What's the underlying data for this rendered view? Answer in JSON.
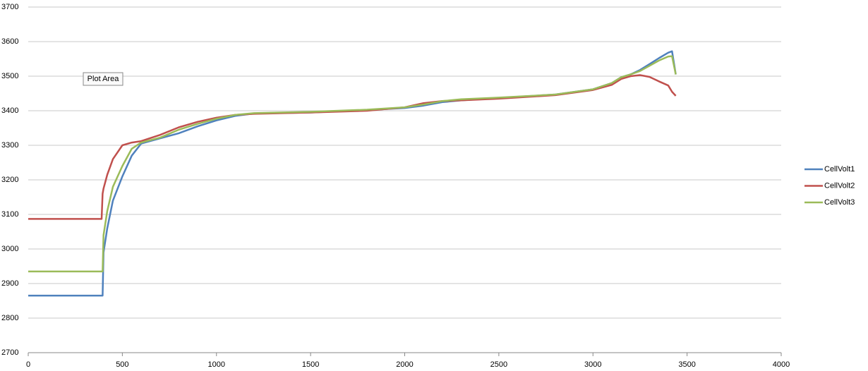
{
  "chart_data": {
    "type": "line",
    "x": [
      0,
      100,
      200,
      300,
      390,
      395,
      400,
      420,
      450,
      500,
      550,
      600,
      700,
      800,
      900,
      1000,
      1100,
      1200,
      1500,
      1800,
      2000,
      2100,
      2200,
      2300,
      2500,
      2800,
      3000,
      3100,
      3150,
      3200,
      3250,
      3300,
      3350,
      3400,
      3420,
      3440
    ],
    "series": [
      {
        "name": "CellVolt1",
        "color": "#4f81bd",
        "values": [
          2865,
          2865,
          2865,
          2865,
          2865,
          2865,
          2990,
          3060,
          3140,
          3210,
          3270,
          3305,
          3320,
          3335,
          3355,
          3372,
          3385,
          3392,
          3395,
          3402,
          3408,
          3415,
          3425,
          3430,
          3437,
          3447,
          3462,
          3480,
          3497,
          3505,
          3518,
          3535,
          3552,
          3568,
          3572,
          3505
        ]
      },
      {
        "name": "CellVolt2",
        "color": "#c0504d",
        "values": [
          3087,
          3087,
          3087,
          3087,
          3087,
          3160,
          3175,
          3215,
          3260,
          3300,
          3308,
          3312,
          3330,
          3352,
          3368,
          3380,
          3388,
          3391,
          3395,
          3400,
          3410,
          3422,
          3428,
          3430,
          3435,
          3445,
          3460,
          3475,
          3492,
          3500,
          3503,
          3498,
          3485,
          3473,
          3455,
          3443
        ]
      },
      {
        "name": "CellVolt3",
        "color": "#9bbb59",
        "values": [
          2935,
          2935,
          2935,
          2935,
          2935,
          2935,
          3040,
          3110,
          3180,
          3240,
          3290,
          3308,
          3322,
          3345,
          3362,
          3377,
          3388,
          3393,
          3397,
          3403,
          3410,
          3418,
          3428,
          3433,
          3438,
          3447,
          3462,
          3480,
          3497,
          3505,
          3515,
          3530,
          3545,
          3557,
          3558,
          3505
        ]
      }
    ],
    "xlim": [
      0,
      4000
    ],
    "xticks": [
      0,
      500,
      1000,
      1500,
      2000,
      2500,
      3000,
      3500,
      4000
    ],
    "ylim": [
      2700,
      3700
    ],
    "yticks": [
      2700,
      2800,
      2900,
      3000,
      3100,
      3200,
      3300,
      3400,
      3500,
      3600,
      3700
    ],
    "grid": true,
    "legend": "right",
    "tooltip": "Plot Area"
  }
}
